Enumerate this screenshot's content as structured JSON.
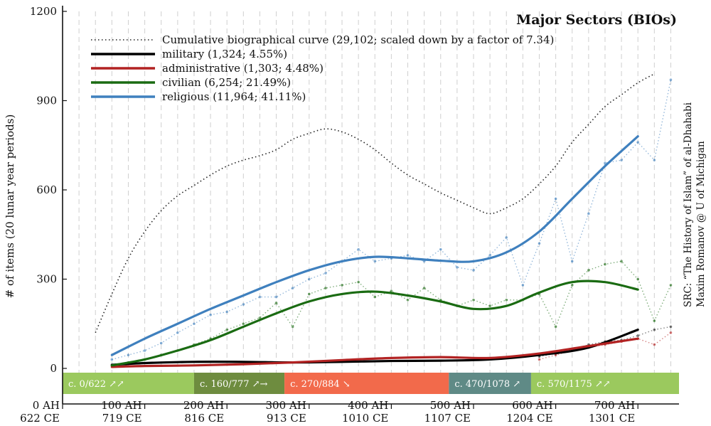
{
  "chart_data": {
    "type": "line",
    "title": "Major Sectors (BIOs)",
    "ylabel": "# of items (20 lunar year periods)",
    "xlabel": "",
    "xlim": [
      0,
      750
    ],
    "ylim": [
      0,
      1200
    ],
    "grid": true,
    "legend_position": "top-left",
    "y_ticks": [
      {
        "value": 0,
        "label": "0"
      },
      {
        "value": 300,
        "label": "300"
      },
      {
        "value": 600,
        "label": "600"
      },
      {
        "value": 900,
        "label": "900"
      },
      {
        "value": 1200,
        "label": "1200"
      }
    ],
    "x_ticks": [
      {
        "value": 0,
        "label1": "0 AH",
        "label2": "622 CE"
      },
      {
        "value": 100,
        "label1": "100 AH",
        "label2": "719 CE"
      },
      {
        "value": 200,
        "label1": "200 AH",
        "label2": "816 CE"
      },
      {
        "value": 300,
        "label1": "300 AH",
        "label2": "913 CE"
      },
      {
        "value": 400,
        "label1": "400 AH",
        "label2": "1010 CE"
      },
      {
        "value": 500,
        "label1": "500 AH",
        "label2": "1107 CE"
      },
      {
        "value": 600,
        "label1": "600 AH",
        "label2": "1204 CE"
      },
      {
        "value": 700,
        "label1": "700 AH",
        "label2": "1301 CE"
      }
    ],
    "source_note": [
      "SRC: “The History of Islam” of al-Dhahabi",
      "Maxim Romanov @ U of Michigan"
    ],
    "periods": [
      {
        "label": "c. 0/622 ↗↗",
        "start": 0,
        "end": 160,
        "color": "#9bc95e"
      },
      {
        "label": "c. 160/777 ↗→",
        "start": 160,
        "end": 270,
        "color": "#6e8c3f"
      },
      {
        "label": "c. 270/884 ↘",
        "start": 270,
        "end": 470,
        "color": "#f26a4b"
      },
      {
        "label": "c. 470/1078 ↗",
        "start": 470,
        "end": 570,
        "color": "#5f8a86"
      },
      {
        "label": "c. 570/1175 ↗↗",
        "start": 570,
        "end": 750,
        "color": "#9bc95e"
      }
    ],
    "series": [
      {
        "name": "Cumulative biographical curve (29,102; scaled down by a factor of 7.34)",
        "style": "dotted",
        "color": "#222222",
        "x": [
          40,
          60,
          80,
          100,
          120,
          140,
          160,
          180,
          200,
          220,
          240,
          260,
          280,
          300,
          320,
          340,
          360,
          380,
          400,
          420,
          440,
          460,
          480,
          500,
          520,
          540,
          560,
          580,
          600,
          620,
          640,
          660,
          680,
          700,
          720
        ],
        "y": [
          120,
          250,
          370,
          460,
          530,
          580,
          615,
          650,
          680,
          700,
          715,
          735,
          770,
          790,
          805,
          795,
          770,
          735,
          690,
          650,
          620,
          590,
          565,
          540,
          520,
          540,
          570,
          620,
          680,
          760,
          820,
          880,
          920,
          960,
          990
        ]
      },
      {
        "name": "military (1,324; 4.55%)",
        "style": "solid",
        "color": "#000000",
        "x": [
          60,
          100,
          160,
          220,
          280,
          340,
          400,
          460,
          520,
          580,
          640,
          700
        ],
        "y": [
          12,
          18,
          22,
          22,
          20,
          22,
          25,
          26,
          30,
          45,
          70,
          130
        ]
      },
      {
        "name": "administrative (1,303; 4.48%)",
        "style": "solid",
        "color": "#b22222",
        "x": [
          60,
          100,
          160,
          220,
          280,
          340,
          400,
          460,
          520,
          580,
          640,
          700
        ],
        "y": [
          5,
          8,
          10,
          14,
          20,
          28,
          35,
          38,
          35,
          50,
          75,
          100
        ]
      },
      {
        "name": "civilian (6,254; 21.49%)",
        "style": "solid",
        "color": "#1a6b12",
        "x": [
          60,
          100,
          140,
          180,
          220,
          260,
          300,
          340,
          380,
          420,
          460,
          500,
          540,
          580,
          620,
          660,
          700
        ],
        "y": [
          10,
          30,
          60,
          95,
          140,
          185,
          225,
          250,
          258,
          245,
          225,
          200,
          210,
          255,
          290,
          290,
          265
        ]
      },
      {
        "name": "religious (11,964; 41.11%)",
        "style": "solid",
        "color": "#3f80be",
        "x": [
          60,
          100,
          140,
          180,
          220,
          260,
          300,
          340,
          380,
          420,
          460,
          500,
          540,
          580,
          620,
          660,
          700
        ],
        "y": [
          45,
          100,
          150,
          200,
          245,
          290,
          330,
          360,
          375,
          370,
          362,
          360,
          390,
          460,
          570,
          680,
          780
        ]
      }
    ],
    "raw_series": [
      {
        "name": "religious raw",
        "color": "#3f80be",
        "x": [
          60,
          80,
          100,
          120,
          140,
          160,
          180,
          200,
          220,
          240,
          260,
          280,
          300,
          320,
          340,
          360,
          380,
          400,
          420,
          440,
          460,
          480,
          500,
          520,
          540,
          560,
          580,
          600,
          620,
          640,
          660,
          680,
          700,
          720,
          740
        ],
        "y": [
          30,
          45,
          60,
          85,
          120,
          150,
          180,
          190,
          215,
          240,
          240,
          270,
          300,
          320,
          360,
          400,
          360,
          370,
          380,
          360,
          400,
          340,
          330,
          380,
          440,
          280,
          420,
          570,
          360,
          520,
          690,
          700,
          760,
          700,
          970
        ]
      },
      {
        "name": "civilian raw",
        "color": "#1a6b12",
        "x": [
          60,
          80,
          100,
          120,
          140,
          160,
          180,
          200,
          220,
          240,
          260,
          280,
          300,
          320,
          340,
          360,
          380,
          400,
          420,
          440,
          460,
          480,
          500,
          520,
          540,
          560,
          580,
          600,
          620,
          640,
          660,
          680,
          700,
          720,
          740
        ],
        "y": [
          10,
          20,
          30,
          45,
          60,
          80,
          100,
          130,
          150,
          170,
          220,
          140,
          250,
          270,
          280,
          290,
          240,
          260,
          230,
          270,
          230,
          210,
          230,
          210,
          230,
          230,
          250,
          140,
          280,
          330,
          350,
          360,
          300,
          160,
          280
        ]
      },
      {
        "name": "military raw",
        "color": "#222222",
        "x": [
          580,
          600,
          620,
          640,
          660,
          680,
          700,
          720,
          740
        ],
        "y": [
          40,
          50,
          60,
          80,
          90,
          95,
          110,
          130,
          140
        ]
      },
      {
        "name": "administrative raw",
        "color": "#b22222",
        "x": [
          580,
          600,
          620,
          640,
          660,
          680,
          700,
          720,
          740
        ],
        "y": [
          30,
          45,
          60,
          70,
          80,
          90,
          100,
          80,
          120
        ]
      }
    ]
  }
}
